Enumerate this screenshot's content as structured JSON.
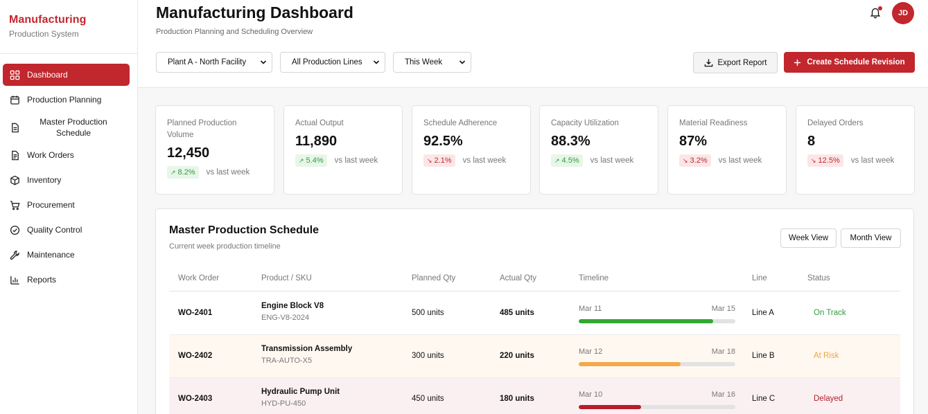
{
  "brand": {
    "title": "Manufacturing",
    "subtitle": "Production System"
  },
  "sidebar": {
    "items": [
      {
        "label": "Dashboard",
        "icon": "grid-icon",
        "active": true
      },
      {
        "label": "Production Planning",
        "icon": "calendar-icon"
      },
      {
        "label": "Master Production Schedule",
        "icon": "document-icon"
      },
      {
        "label": "Work Orders",
        "icon": "clipboard-icon"
      },
      {
        "label": "Inventory",
        "icon": "box-icon"
      },
      {
        "label": "Procurement",
        "icon": "cart-icon"
      },
      {
        "label": "Quality Control",
        "icon": "check-circle-icon"
      },
      {
        "label": "Maintenance",
        "icon": "wrench-icon"
      },
      {
        "label": "Reports",
        "icon": "bar-chart-icon"
      }
    ]
  },
  "header": {
    "title": "Manufacturing Dashboard",
    "subtitle": "Production Planning and Scheduling Overview",
    "avatar_initials": "JD",
    "has_notification": true
  },
  "filters": {
    "plant": "Plant A - North Facility",
    "line": "All Production Lines",
    "period": "This Week"
  },
  "actions": {
    "export_label": "Export Report",
    "create_label": "Create Schedule Revision"
  },
  "kpis": [
    {
      "label": "Planned Production Volume",
      "value": "12,450",
      "delta": "8.2%",
      "direction": "up",
      "compare": "vs last week"
    },
    {
      "label": "Actual Output",
      "value": "11,890",
      "delta": "5.4%",
      "direction": "up",
      "compare": "vs last week"
    },
    {
      "label": "Schedule Adherence",
      "value": "92.5%",
      "delta": "2.1%",
      "direction": "down",
      "compare": "vs last week"
    },
    {
      "label": "Capacity Utilization",
      "value": "88.3%",
      "delta": "4.5%",
      "direction": "up",
      "compare": "vs last week"
    },
    {
      "label": "Material Readiness",
      "value": "87%",
      "delta": "3.2%",
      "direction": "down",
      "compare": "vs last week"
    },
    {
      "label": "Delayed Orders",
      "value": "8",
      "delta": "12.5%",
      "direction": "down",
      "compare": "vs last week"
    }
  ],
  "schedule": {
    "title": "Master Production Schedule",
    "subtitle": "Current week production timeline",
    "view_buttons": [
      "Week View",
      "Month View"
    ],
    "columns": [
      "Work Order",
      "Product / SKU",
      "Planned Qty",
      "Actual Qty",
      "Timeline",
      "Line",
      "Status"
    ],
    "rows": [
      {
        "work_order": "WO-2401",
        "product": "Engine Block V8",
        "sku": "ENG-V8-2024",
        "planned": "500 units",
        "actual": "485 units",
        "start": "Mar 11",
        "end": "Mar 15",
        "progress": 0.86,
        "line": "Line A",
        "status": "On Track",
        "tone": "ok"
      },
      {
        "work_order": "WO-2402",
        "product": "Transmission Assembly",
        "sku": "TRA-AUTO-X5",
        "planned": "300 units",
        "actual": "220 units",
        "start": "Mar 12",
        "end": "Mar 18",
        "progress": 0.65,
        "line": "Line B",
        "status": "At Risk",
        "tone": "risk"
      },
      {
        "work_order": "WO-2403",
        "product": "Hydraulic Pump Unit",
        "sku": "HYD-PU-450",
        "planned": "450 units",
        "actual": "180 units",
        "start": "Mar 10",
        "end": "Mar 16",
        "progress": 0.4,
        "line": "Line C",
        "status": "Delayed",
        "tone": "delayed"
      }
    ]
  },
  "colors": {
    "accent": "#c1272d",
    "ok": "#2e9e3a",
    "risk": "#f0a33c",
    "delayed": "#b3202b",
    "bar_ok": "#32a832",
    "bar_risk": "#f5a849",
    "bar_delayed": "#b81d2c"
  }
}
